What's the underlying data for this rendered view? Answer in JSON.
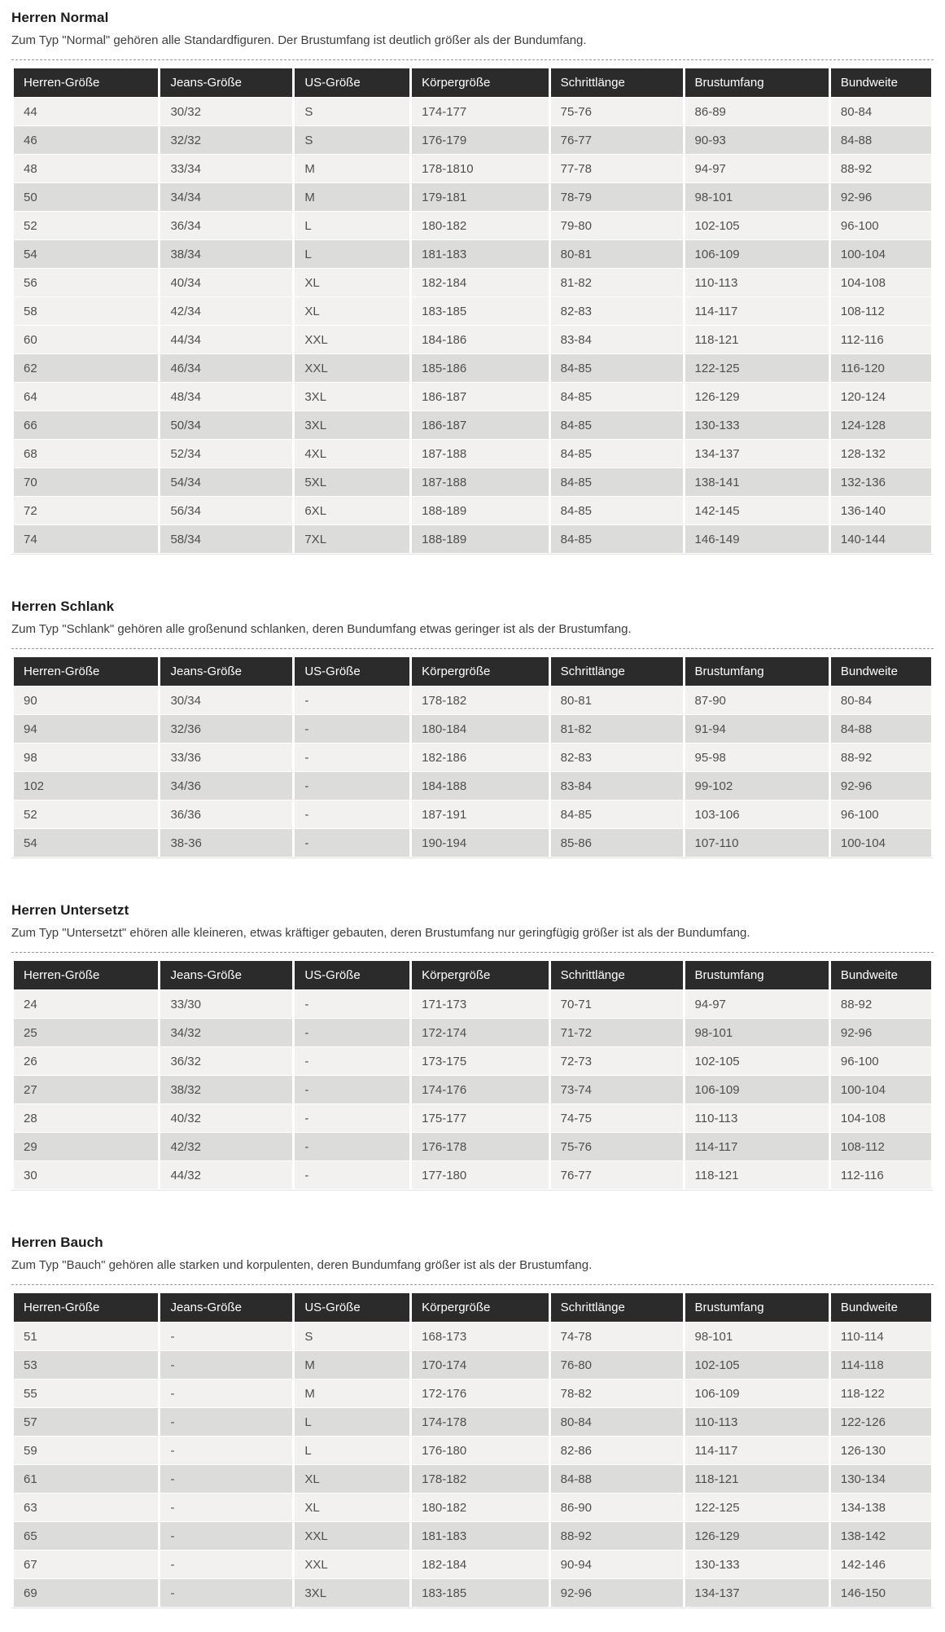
{
  "page": {
    "language": "de",
    "content_type": "men-size-charts"
  },
  "theme": {
    "header_bg": "#2b2b2b",
    "header_text": "#ffffff",
    "row_light": "#f2f1ef",
    "row_gray": "#dcdcda",
    "cell_text": "#4e4e4e",
    "title_text": "#1c1c1c"
  },
  "sections": [
    {
      "title": "Herren Normal",
      "description": "Zum Typ \"Normal\" gehören alle Standardfiguren. Der Brustumfang ist deutlich größer als der Bundumfang.",
      "columns": [
        "Herren-Größe",
        "Jeans-Größe",
        "US-Größe",
        "Körpergröße",
        "Schrittlänge",
        "Brustumfang",
        "Bundweite"
      ],
      "rows": [
        [
          "44",
          "30/32",
          "S",
          "174-177",
          "75-76",
          "86-89",
          "80-84"
        ],
        [
          "46",
          "32/32",
          "S",
          "176-179",
          "76-77",
          "90-93",
          "84-88"
        ],
        [
          "48",
          "33/34",
          "M",
          "178-1810",
          "77-78",
          "94-97",
          "88-92"
        ],
        [
          "50",
          "34/34",
          "M",
          "179-181",
          "78-79",
          "98-101",
          "92-96"
        ],
        [
          "52",
          "36/34",
          "L",
          "180-182",
          "79-80",
          "102-105",
          "96-100"
        ],
        [
          "54",
          "38/34",
          "L",
          "181-183",
          "80-81",
          "106-109",
          "100-104"
        ],
        [
          "56",
          "40/34",
          "XL",
          "182-184",
          "81-82",
          "110-113",
          "104-108"
        ],
        [
          "58",
          "42/34",
          "XL",
          "183-185",
          "82-83",
          "114-117",
          "108-112"
        ],
        [
          "60",
          "44/34",
          "XXL",
          "184-186",
          "83-84",
          "118-121",
          "112-116"
        ],
        [
          "62",
          "46/34",
          "XXL",
          "185-186",
          "84-85",
          "122-125",
          "116-120"
        ],
        [
          "64",
          "48/34",
          "3XL",
          "186-187",
          "84-85",
          "126-129",
          "120-124"
        ],
        [
          "66",
          "50/34",
          "3XL",
          "186-187",
          "84-85",
          "130-133",
          "124-128"
        ],
        [
          "68",
          "52/34",
          "4XL",
          "187-188",
          "84-85",
          "134-137",
          "128-132"
        ],
        [
          "70",
          "54/34",
          "5XL",
          "187-188",
          "84-85",
          "138-141",
          "132-136"
        ],
        [
          "72",
          "56/34",
          "6XL",
          "188-189",
          "84-85",
          "142-145",
          "136-140"
        ],
        [
          "74",
          "58/34",
          "7XL",
          "188-189",
          "84-85",
          "146-149",
          "140-144"
        ]
      ],
      "gray_rows": [
        1,
        3,
        5,
        9,
        11,
        13,
        15
      ]
    },
    {
      "title": "Herren Schlank",
      "description": "Zum Typ \"Schlank\" gehören alle großenund schlanken, deren Bundumfang etwas geringer ist als der Brustumfang.",
      "columns": [
        "Herren-Größe",
        "Jeans-Größe",
        "US-Größe",
        "Körpergröße",
        "Schrittlänge",
        "Brustumfang",
        "Bundweite"
      ],
      "rows": [
        [
          "90",
          "30/34",
          "-",
          "178-182",
          "80-81",
          "87-90",
          "80-84"
        ],
        [
          "94",
          "32/36",
          "-",
          "180-184",
          "81-82",
          "91-94",
          "84-88"
        ],
        [
          "98",
          "33/36",
          "-",
          "182-186",
          "82-83",
          "95-98",
          "88-92"
        ],
        [
          "102",
          "34/36",
          "-",
          "184-188",
          "83-84",
          "99-102",
          "92-96"
        ],
        [
          "52",
          "36/36",
          "-",
          "187-191",
          "84-85",
          "103-106",
          "96-100"
        ],
        [
          "54",
          "38-36",
          "-",
          "190-194",
          "85-86",
          "107-110",
          "100-104"
        ]
      ],
      "gray_rows": [
        1,
        3,
        5
      ]
    },
    {
      "title": "Herren Untersetzt",
      "description": "Zum Typ \"Untersetzt\" ehören alle kleineren, etwas kräftiger gebauten, deren Brustumfang nur geringfügig größer ist als der Bundumfang.",
      "columns": [
        "Herren-Größe",
        "Jeans-Größe",
        "US-Größe",
        "Körpergröße",
        "Schrittlänge",
        "Brustumfang",
        "Bundweite"
      ],
      "rows": [
        [
          "24",
          "33/30",
          "-",
          "171-173",
          "70-71",
          "94-97",
          "88-92"
        ],
        [
          "25",
          "34/32",
          "-",
          "172-174",
          "71-72",
          "98-101",
          "92-96"
        ],
        [
          "26",
          "36/32",
          "-",
          "173-175",
          "72-73",
          "102-105",
          "96-100"
        ],
        [
          "27",
          "38/32",
          "-",
          "174-176",
          "73-74",
          "106-109",
          "100-104"
        ],
        [
          "28",
          "40/32",
          "-",
          "175-177",
          "74-75",
          "110-113",
          "104-108"
        ],
        [
          "29",
          "42/32",
          "-",
          "176-178",
          "75-76",
          "114-117",
          "108-112"
        ],
        [
          "30",
          "44/32",
          "-",
          "177-180",
          "76-77",
          "118-121",
          "112-116"
        ]
      ],
      "gray_rows": [
        1,
        3,
        5
      ]
    },
    {
      "title": "Herren Bauch",
      "description": "Zum Typ \"Bauch\" gehören alle starken und korpulenten, deren Bundumfang größer ist als der Brustumfang.",
      "columns": [
        "Herren-Größe",
        "Jeans-Größe",
        "US-Größe",
        "Körpergröße",
        "Schrittlänge",
        "Brustumfang",
        "Bundweite"
      ],
      "rows": [
        [
          "51",
          "-",
          "S",
          "168-173",
          "74-78",
          "98-101",
          "110-114"
        ],
        [
          "53",
          "-",
          "M",
          "170-174",
          "76-80",
          "102-105",
          "114-118"
        ],
        [
          "55",
          "-",
          "M",
          "172-176",
          "78-82",
          "106-109",
          "118-122"
        ],
        [
          "57",
          "-",
          "L",
          "174-178",
          "80-84",
          "110-113",
          "122-126"
        ],
        [
          "59",
          "-",
          "L",
          "176-180",
          "82-86",
          "114-117",
          "126-130"
        ],
        [
          "61",
          "-",
          "XL",
          "178-182",
          "84-88",
          "118-121",
          "130-134"
        ],
        [
          "63",
          "-",
          "XL",
          "180-182",
          "86-90",
          "122-125",
          "134-138"
        ],
        [
          "65",
          "-",
          "XXL",
          "181-183",
          "88-92",
          "126-129",
          "138-142"
        ],
        [
          "67",
          "-",
          "XXL",
          "182-184",
          "90-94",
          "130-133",
          "142-146"
        ],
        [
          "69",
          "-",
          "3XL",
          "183-185",
          "92-96",
          "134-137",
          "146-150"
        ]
      ],
      "gray_rows": [
        1,
        3,
        5,
        7,
        9
      ]
    }
  ]
}
